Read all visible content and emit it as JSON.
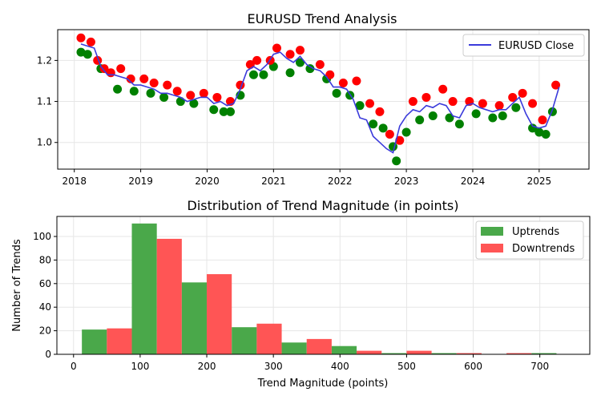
{
  "chart_data": [
    {
      "type": "line",
      "title": "EURUSD Trend Analysis",
      "xlabel": "",
      "ylabel": "",
      "xlim": [
        2017.75,
        2025.75
      ],
      "ylim": [
        0.935,
        1.275
      ],
      "x_ticks": [
        2018,
        2019,
        2020,
        2021,
        2022,
        2023,
        2024,
        2025
      ],
      "x_tick_labels": [
        "2018",
        "2019",
        "2020",
        "2021",
        "2022",
        "2023",
        "2024",
        "2025"
      ],
      "y_ticks": [
        1.0,
        1.1,
        1.2
      ],
      "y_tick_labels": [
        "1.0",
        "1.1",
        "1.2"
      ],
      "grid": true,
      "legend": {
        "position": "top-right",
        "entries": [
          "EURUSD Close"
        ]
      },
      "line_color": "#3b3bdb",
      "peak_color": "#ff0000",
      "trough_color": "#008000",
      "series": [
        {
          "name": "EURUSD Close",
          "x": [
            2018.1,
            2018.2,
            2018.3,
            2018.4,
            2018.5,
            2018.6,
            2018.7,
            2018.8,
            2018.9,
            2019.0,
            2019.1,
            2019.2,
            2019.3,
            2019.4,
            2019.5,
            2019.6,
            2019.7,
            2019.8,
            2019.9,
            2020.0,
            2020.1,
            2020.2,
            2020.3,
            2020.4,
            2020.5,
            2020.6,
            2020.7,
            2020.8,
            2020.9,
            2021.0,
            2021.1,
            2021.2,
            2021.3,
            2021.4,
            2021.5,
            2021.6,
            2021.7,
            2021.8,
            2021.9,
            2022.0,
            2022.1,
            2022.2,
            2022.3,
            2022.4,
            2022.5,
            2022.6,
            2022.7,
            2022.8,
            2022.9,
            2023.0,
            2023.1,
            2023.2,
            2023.3,
            2023.4,
            2023.5,
            2023.6,
            2023.7,
            2023.8,
            2023.9,
            2024.0,
            2024.1,
            2024.2,
            2024.3,
            2024.4,
            2024.5,
            2024.6,
            2024.7,
            2024.8,
            2024.9,
            2025.0,
            2025.1,
            2025.2,
            2025.3
          ],
          "y": [
            1.24,
            1.235,
            1.23,
            1.185,
            1.165,
            1.165,
            1.16,
            1.155,
            1.14,
            1.14,
            1.135,
            1.13,
            1.12,
            1.12,
            1.115,
            1.11,
            1.1,
            1.105,
            1.11,
            1.11,
            1.095,
            1.1,
            1.09,
            1.095,
            1.13,
            1.175,
            1.185,
            1.175,
            1.19,
            1.215,
            1.22,
            1.205,
            1.195,
            1.21,
            1.19,
            1.18,
            1.175,
            1.16,
            1.135,
            1.135,
            1.13,
            1.105,
            1.06,
            1.055,
            1.015,
            1.0,
            0.985,
            0.975,
            1.04,
            1.065,
            1.08,
            1.075,
            1.09,
            1.085,
            1.095,
            1.09,
            1.065,
            1.06,
            1.09,
            1.095,
            1.085,
            1.08,
            1.075,
            1.08,
            1.08,
            1.095,
            1.11,
            1.07,
            1.04,
            1.035,
            1.04,
            1.08,
            1.135
          ]
        }
      ],
      "peaks": {
        "x": [
          2018.1,
          2018.25,
          2018.35,
          2018.45,
          2018.55,
          2018.7,
          2018.85,
          2019.05,
          2019.2,
          2019.4,
          2019.55,
          2019.75,
          2019.95,
          2020.15,
          2020.35,
          2020.5,
          2020.65,
          2020.75,
          2020.95,
          2021.05,
          2021.25,
          2021.4,
          2021.7,
          2021.85,
          2022.05,
          2022.25,
          2022.45,
          2022.6,
          2022.75,
          2022.9,
          2023.1,
          2023.3,
          2023.55,
          2023.7,
          2023.95,
          2024.15,
          2024.4,
          2024.6,
          2024.75,
          2024.9,
          2025.05,
          2025.25
        ],
        "y": [
          1.255,
          1.245,
          1.2,
          1.18,
          1.17,
          1.18,
          1.155,
          1.155,
          1.145,
          1.14,
          1.125,
          1.115,
          1.12,
          1.11,
          1.1,
          1.14,
          1.19,
          1.2,
          1.2,
          1.23,
          1.215,
          1.225,
          1.19,
          1.165,
          1.145,
          1.15,
          1.095,
          1.075,
          1.02,
          1.005,
          1.1,
          1.11,
          1.13,
          1.1,
          1.1,
          1.095,
          1.09,
          1.11,
          1.12,
          1.095,
          1.055,
          1.14
        ]
      },
      "troughs": {
        "x": [
          2018.1,
          2018.2,
          2018.4,
          2018.65,
          2018.9,
          2019.15,
          2019.35,
          2019.6,
          2019.8,
          2020.1,
          2020.25,
          2020.35,
          2020.5,
          2020.7,
          2020.85,
          2021.0,
          2021.25,
          2021.4,
          2021.55,
          2021.8,
          2021.95,
          2022.15,
          2022.3,
          2022.5,
          2022.65,
          2022.8,
          2022.85,
          2023.0,
          2023.2,
          2023.4,
          2023.65,
          2023.8,
          2024.05,
          2024.3,
          2024.45,
          2024.65,
          2024.9,
          2025.0,
          2025.1,
          2025.2
        ],
        "y": [
          1.22,
          1.215,
          1.18,
          1.13,
          1.125,
          1.12,
          1.11,
          1.1,
          1.095,
          1.08,
          1.075,
          1.075,
          1.115,
          1.165,
          1.165,
          1.185,
          1.17,
          1.195,
          1.18,
          1.155,
          1.12,
          1.115,
          1.09,
          1.045,
          1.035,
          0.99,
          0.955,
          1.025,
          1.055,
          1.065,
          1.06,
          1.045,
          1.07,
          1.06,
          1.065,
          1.085,
          1.035,
          1.025,
          1.02,
          1.075
        ]
      }
    },
    {
      "type": "bar",
      "title": "Distribution of Trend Magnitude (in points)",
      "xlabel": "Trend Magnitude (points)",
      "ylabel": "Number of Trends",
      "xlim": [
        -25,
        775
      ],
      "ylim": [
        0,
        117
      ],
      "x_ticks": [
        0,
        100,
        200,
        300,
        400,
        500,
        600,
        700
      ],
      "x_tick_labels": [
        "0",
        "100",
        "200",
        "300",
        "400",
        "500",
        "600",
        "700"
      ],
      "y_ticks": [
        0,
        20,
        40,
        60,
        80,
        100
      ],
      "y_tick_labels": [
        "0",
        "20",
        "40",
        "60",
        "80",
        "100"
      ],
      "grid": true,
      "legend": {
        "position": "top-right",
        "entries": [
          "Uptrends",
          "Downtrends"
        ]
      },
      "bin_width": 75,
      "categories": [
        50,
        125,
        200,
        275,
        350,
        425,
        500,
        575,
        650,
        725
      ],
      "series": [
        {
          "name": "Uptrends",
          "color": "#4aa84a",
          "values": [
            21,
            111,
            61,
            23,
            10,
            7,
            1,
            1,
            0,
            1
          ]
        },
        {
          "name": "Downtrends",
          "color": "#ff5555",
          "values": [
            22,
            98,
            68,
            26,
            13,
            3,
            3,
            1,
            1,
            0
          ]
        }
      ]
    }
  ]
}
